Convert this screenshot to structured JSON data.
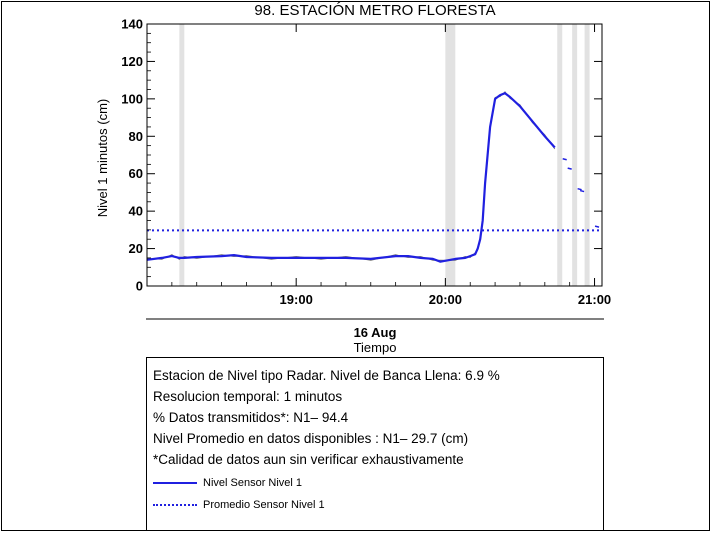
{
  "colors": {
    "series": "#2020e0",
    "thin": "#6a6a6a",
    "gap": "#e2e2e2"
  },
  "chart_data": {
    "type": "line",
    "title": "98. ESTACIÓN METRO FLORESTA",
    "xlabel_date": "16 Aug",
    "xlabel": "Tiempo",
    "ylabel": "Nivel 1 minutos (cm)",
    "xlim": [
      "18:00",
      "21:03"
    ],
    "ylim": [
      0,
      140
    ],
    "yticks": [
      "0",
      "20",
      "40",
      "60",
      "80",
      "100",
      "120",
      "140"
    ],
    "xticks": [
      "19:00",
      "20:00",
      "21:00"
    ],
    "grid": false,
    "data_gaps": [
      [
        "18:13",
        "18:15"
      ],
      [
        "20:00",
        "20:04"
      ],
      [
        "20:45",
        "20:47"
      ],
      [
        "20:51",
        "20:53"
      ],
      [
        "20:56",
        "20:58"
      ]
    ],
    "series": [
      {
        "name": "Nivel Sensor Nivel 1",
        "style": "solid",
        "x": [
          "18:00",
          "18:06",
          "18:10",
          "18:13",
          "18:15",
          "18:20",
          "18:30",
          "18:35",
          "18:40",
          "18:50",
          "19:00",
          "19:10",
          "19:20",
          "19:30",
          "19:40",
          "19:45",
          "19:50",
          "19:55",
          "19:58",
          "20:04",
          "20:08",
          "20:10",
          "20:12",
          "20:13",
          "20:14",
          "20:15",
          "20:16",
          "20:18",
          "20:20",
          "20:22",
          "20:24",
          "20:26",
          "20:30",
          "20:35",
          "20:40",
          "20:44"
        ],
        "y": [
          14,
          15,
          16,
          15,
          15,
          15.5,
          16,
          16.5,
          15.5,
          15,
          15,
          15,
          15,
          14.5,
          16,
          16,
          15,
          14.5,
          13,
          14.5,
          15,
          16,
          17,
          20,
          25,
          35,
          55,
          85,
          100,
          102,
          103,
          101,
          96,
          88,
          80,
          74
        ]
      },
      {
        "name": "Promedio Sensor Nivel 1",
        "style": "dotted",
        "x": [
          "18:00",
          "21:03"
        ],
        "y": [
          29.7,
          29.7
        ]
      }
    ],
    "sparse_points": {
      "x": [
        "20:48",
        "20:50",
        "20:54",
        "20:55",
        "21:01"
      ],
      "y": [
        68,
        63,
        52,
        51,
        32
      ]
    }
  },
  "info": {
    "lines": [
      "Estacion de Nivel tipo Radar. Nivel de Banca Llena:  6.9 %",
      "Resolucion temporal: 1 minutos",
      "% Datos transmitidos*: N1– 94.4",
      "Nivel Promedio en datos disponibles : N1– 29.7 (cm)",
      "*Calidad de datos aun sin verificar exhaustivamente"
    ],
    "legend": [
      "Nivel Sensor Nivel 1",
      "Promedio Sensor Nivel 1"
    ]
  }
}
